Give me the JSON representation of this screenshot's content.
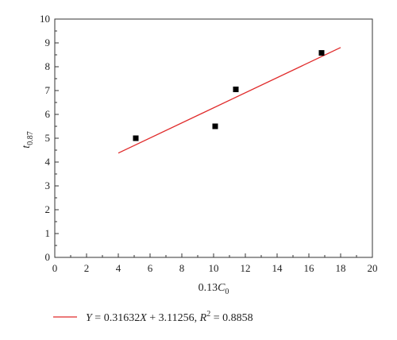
{
  "chart_data": {
    "type": "scatter",
    "xlabel_main": "0.13",
    "xlabel_var": "C",
    "xlabel_sub": "0",
    "ylabel_var": "t",
    "ylabel_sub": "0.87",
    "xlim": [
      0,
      20
    ],
    "ylim": [
      0,
      10
    ],
    "x_ticks": [
      "0",
      "2",
      "4",
      "6",
      "8",
      "10",
      "12",
      "14",
      "16",
      "18",
      "20"
    ],
    "y_ticks": [
      "0",
      "1",
      "2",
      "3",
      "4",
      "5",
      "6",
      "7",
      "8",
      "9",
      "10"
    ],
    "grid": false,
    "points": [
      {
        "x": 5.1,
        "y": 5.0
      },
      {
        "x": 10.1,
        "y": 5.5
      },
      {
        "x": 11.4,
        "y": 7.05
      },
      {
        "x": 16.8,
        "y": 8.58
      }
    ],
    "fit_line": {
      "slope": 0.31632,
      "intercept": 3.11256,
      "x_range": [
        4.0,
        18.0
      ],
      "color": "#e02b2b"
    },
    "legend": {
      "placement": "bottom",
      "y_var": "Y",
      "eq_mid": " = 0.31632",
      "x_var": "X",
      "eq_tail": " + 3.11256, ",
      "r_var": "R",
      "r_sup": "2",
      "r_val": " = 0.8858"
    },
    "marker_color": "#000000"
  }
}
